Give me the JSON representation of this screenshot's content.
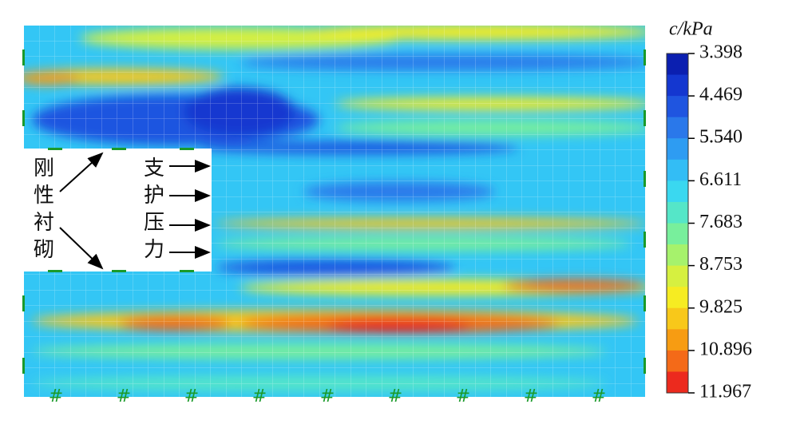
{
  "chart_data": {
    "type": "contour",
    "colorbar_title": "c/kPa",
    "ylim": [
      3.398,
      11.967
    ],
    "yticks": [
      3.398,
      4.469,
      5.54,
      {
        "value": 5.54,
        "label": "5.540"
      },
      6.611,
      7.683,
      8.753,
      9.825,
      10.896,
      11.967
    ],
    "colors": [
      "#0b1fb0",
      "#1437d0",
      "#1f55e0",
      "#2a78ea",
      "#2e9cf2",
      "#33bdf5",
      "#3ad8f0",
      "#55e6c8",
      "#78ef9c",
      "#a6f26c",
      "#d6f040",
      "#f6ec22",
      "#f8c81a",
      "#f79c12",
      "#f46a18",
      "#ec2a1e"
    ],
    "annotations": [
      "刚性衬砌",
      "支护压力"
    ]
  }
}
